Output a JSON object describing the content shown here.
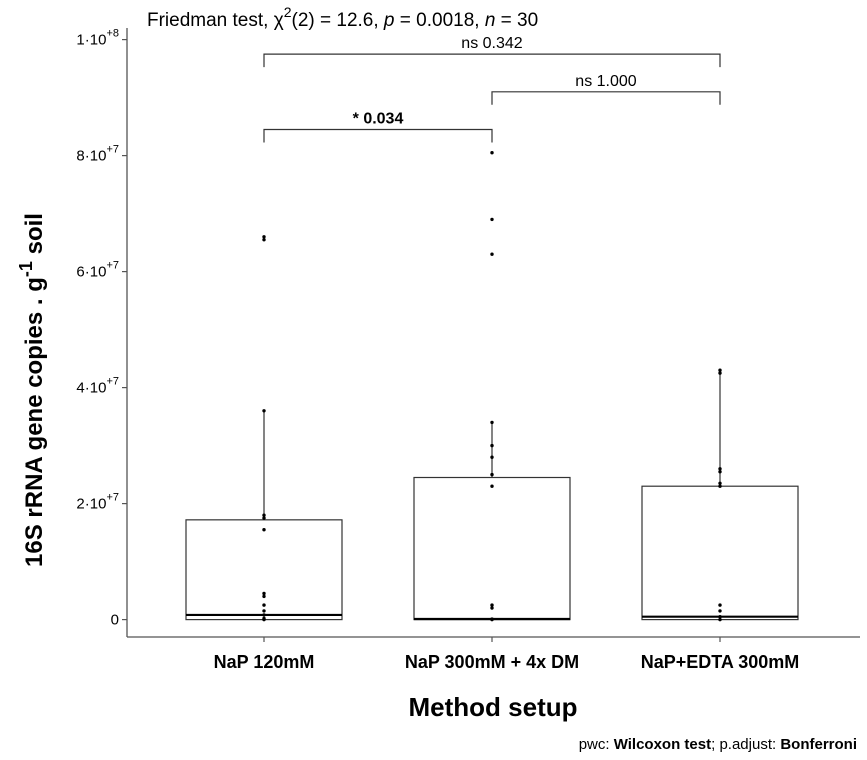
{
  "chart_data": {
    "type": "box",
    "title": {
      "test": "Friedman test, ",
      "chi": "χ",
      "chi_sup": "2",
      "df": "(2) = 12.6, ",
      "p_label": "p",
      "p_value": " = 0.0018, ",
      "n_label": "n",
      "n_value": " =  30"
    },
    "xlabel": "Method setup",
    "ylabel": {
      "main": "16S rRNA gene copies  . g",
      "sup": "-1",
      "tail": " soil"
    },
    "ylim": [
      -3000000,
      102000000
    ],
    "yticks": [
      {
        "value": 0,
        "base": "0",
        "exp": ""
      },
      {
        "value": 20000000,
        "base": "2·10",
        "exp": "+7"
      },
      {
        "value": 40000000,
        "base": "4·10",
        "exp": "+7"
      },
      {
        "value": 60000000,
        "base": "6·10",
        "exp": "+7"
      },
      {
        "value": 80000000,
        "base": "8·10",
        "exp": "+7"
      },
      {
        "value": 100000000,
        "base": "1·10",
        "exp": "+8"
      }
    ],
    "grid": false,
    "categories": [
      "NaP 120mM",
      "NaP 300mM + 4x DM",
      "NaP+EDTA 300mM"
    ],
    "boxes": [
      {
        "q1": 0,
        "median": 800000,
        "q3": 17200000,
        "whisker_low": 0,
        "whisker_high": 36000000,
        "points": [
          0,
          200000,
          800000,
          1500000,
          2500000,
          4000000,
          4500000,
          15500000,
          17500000,
          18000000,
          36000000,
          65500000,
          66000000
        ]
      },
      {
        "q1": 0,
        "median": 100000,
        "q3": 24500000,
        "whisker_low": 0,
        "whisker_high": 34000000,
        "points": [
          0,
          100000,
          2000000,
          2500000,
          23000000,
          25000000,
          28000000,
          30000000,
          34000000,
          63000000,
          69000000,
          80500000
        ]
      },
      {
        "q1": 0,
        "median": 500000,
        "q3": 23000000,
        "whisker_low": 0,
        "whisker_high": 43000000,
        "points": [
          0,
          500000,
          1500000,
          2500000,
          23000000,
          23500000,
          25500000,
          26000000,
          42500000,
          43000000
        ]
      }
    ],
    "comparisons": [
      {
        "from": 0,
        "to": 1,
        "y": 84500000,
        "label_prefix": "* ",
        "label": "0.034",
        "bold": true
      },
      {
        "from": 1,
        "to": 2,
        "y": 91000000,
        "label_prefix": "ns ",
        "label": "1.000",
        "bold": false
      },
      {
        "from": 0,
        "to": 2,
        "y": 97500000,
        "label_prefix": "ns ",
        "label": "0.342",
        "bold": false
      }
    ]
  },
  "footer": {
    "pwc_label": "pwc: ",
    "pwc_value": "Wilcoxon test",
    "sep": "; p.adjust: ",
    "adjust_value": "Bonferroni"
  }
}
